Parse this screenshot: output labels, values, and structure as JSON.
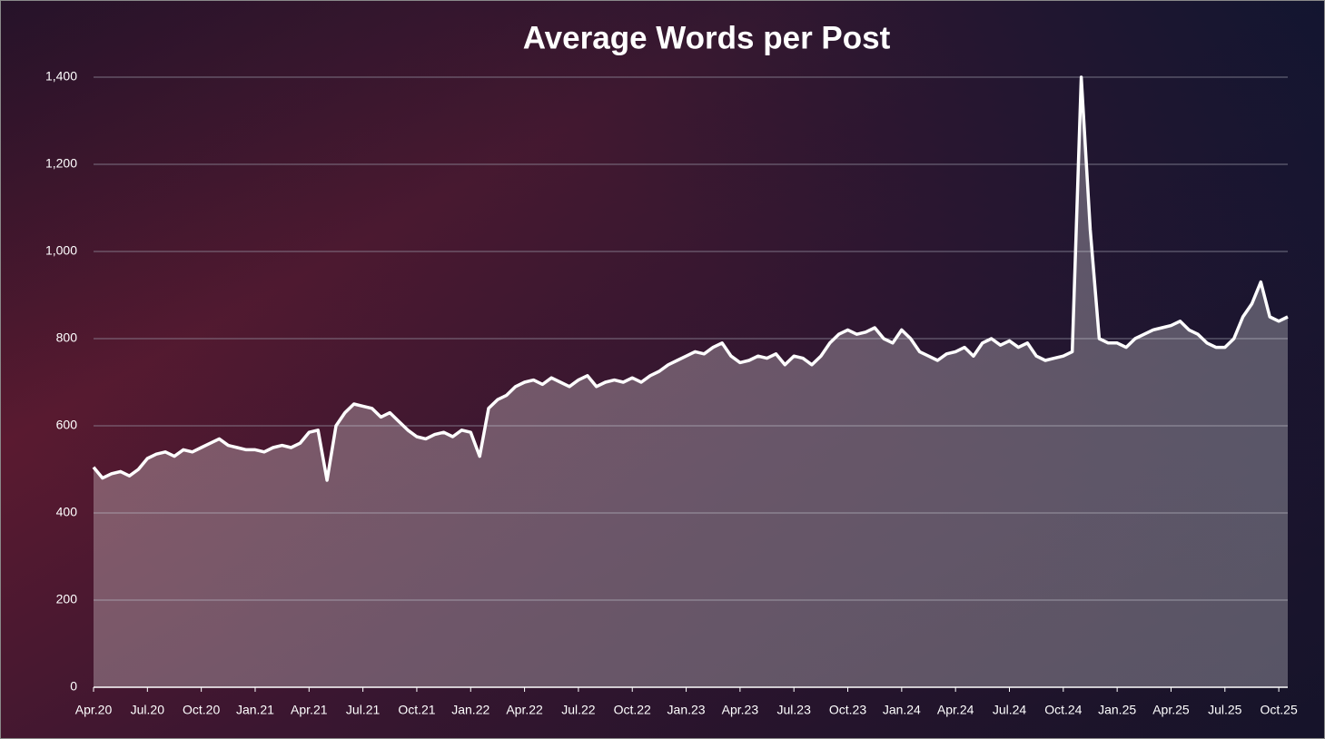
{
  "chart_data": {
    "type": "area",
    "title": "Average Words per Post",
    "categories": [
      "Apr.20",
      null,
      null,
      null,
      null,
      null,
      "Jul.20",
      null,
      null,
      null,
      null,
      null,
      "Oct.20",
      null,
      null,
      null,
      null,
      null,
      "Jan.21",
      null,
      null,
      null,
      null,
      null,
      "Apr.21",
      null,
      null,
      null,
      null,
      null,
      "Jul.21",
      null,
      null,
      null,
      null,
      null,
      "Oct.21",
      null,
      null,
      null,
      null,
      null,
      "Jan.22",
      null,
      null,
      null,
      null,
      null,
      "Apr.22",
      null,
      null,
      null,
      null,
      null,
      "Jul.22",
      null,
      null,
      null,
      null,
      null,
      "Oct.22",
      null,
      null,
      null,
      null,
      null,
      "Jan.23",
      null,
      null,
      null,
      null,
      null,
      "Apr.23",
      null,
      null,
      null,
      null,
      null,
      "Jul.23",
      null,
      null,
      null,
      null,
      null,
      "Oct.23",
      null,
      null,
      null,
      null,
      null,
      "Jan.24",
      null,
      null,
      null,
      null,
      null,
      "Apr.24",
      null,
      null,
      null,
      null,
      null,
      "Jul.24",
      null,
      null,
      null,
      null,
      null,
      "Oct.24",
      null,
      null,
      null,
      null,
      null,
      "Jan.25",
      null,
      null,
      null,
      null,
      null,
      "Apr.25",
      null,
      null,
      null,
      null,
      null,
      "Jul.25",
      null,
      null,
      null,
      null,
      null,
      "Oct.25",
      null
    ],
    "values": [
      505,
      480,
      490,
      495,
      485,
      500,
      525,
      535,
      540,
      530,
      545,
      540,
      550,
      560,
      570,
      555,
      550,
      545,
      545,
      540,
      550,
      555,
      550,
      560,
      585,
      590,
      475,
      600,
      630,
      650,
      645,
      640,
      620,
      630,
      610,
      590,
      575,
      570,
      580,
      585,
      575,
      590,
      585,
      530,
      640,
      660,
      670,
      690,
      700,
      705,
      695,
      710,
      700,
      690,
      705,
      715,
      690,
      700,
      705,
      700,
      710,
      700,
      715,
      725,
      740,
      750,
      760,
      770,
      765,
      780,
      790,
      760,
      745,
      750,
      760,
      755,
      765,
      740,
      760,
      755,
      740,
      760,
      790,
      810,
      820,
      810,
      815,
      825,
      800,
      790,
      820,
      800,
      770,
      760,
      750,
      765,
      770,
      780,
      760,
      790,
      800,
      785,
      795,
      780,
      790,
      760,
      750,
      755,
      760,
      770,
      1400,
      1050,
      800,
      790,
      790,
      780,
      800,
      810,
      820,
      825,
      830,
      840,
      820,
      810,
      790,
      780,
      780,
      800,
      850,
      880,
      930,
      850,
      840,
      850
    ],
    "color": "#ffffff",
    "ylim": [
      0,
      1400
    ],
    "yticks": [
      0,
      200,
      400,
      600,
      800,
      {
        "value": 1000,
        "label": "1,000"
      },
      {
        "value": 1200,
        "label": "1,200"
      },
      {
        "value": 1400,
        "label": "1,400"
      }
    ],
    "grid": true
  }
}
